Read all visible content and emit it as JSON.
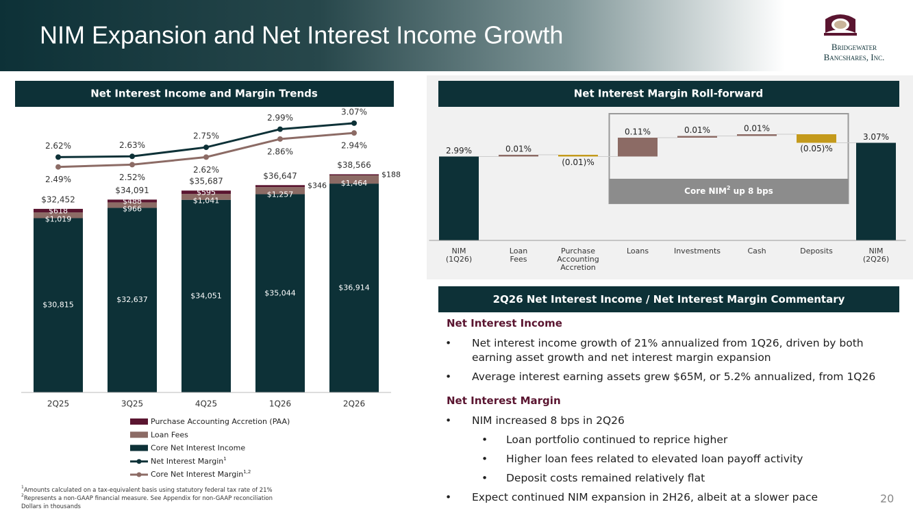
{
  "header": {
    "title": "NIM Expansion and Net Interest Income Growth",
    "logo": [
      "Bridgewater",
      "Bancshares, Inc."
    ]
  },
  "chart_data": [
    {
      "type": "stacked_bar_line",
      "title": "Net Interest Income and Margin Trends",
      "categories": [
        "2Q25",
        "3Q25",
        "4Q25",
        "1Q26",
        "2Q26"
      ],
      "series": [
        {
          "name": "Core Net Interest Income",
          "color": "#0d3137",
          "values": [
            30815,
            32637,
            34051,
            35044,
            36914
          ],
          "value_labels": [
            "$30,815",
            "$32,637",
            "$34,051",
            "$35,044",
            "$36,914"
          ]
        },
        {
          "name": "Loan Fees",
          "color": "#8c6b65",
          "values": [
            1019,
            966,
            1041,
            1257,
            1464
          ],
          "value_labels": [
            "$1,019",
            "$966",
            "$1,041",
            "$1,257",
            "$1,464"
          ]
        },
        {
          "name": "Purchase Accounting Accretion (PAA)",
          "color": "#5a1530",
          "values": [
            618,
            488,
            595,
            346,
            188
          ],
          "value_labels": [
            "$618",
            "$488",
            "$595",
            "$346",
            "$188"
          ]
        },
        {
          "name": "Net Interest Margin",
          "note": "1",
          "type": "line",
          "axis": "y2",
          "color": "#0d3137",
          "values": [
            2.62,
            2.63,
            2.75,
            2.99,
            3.07
          ],
          "value_labels": [
            "2.62%",
            "2.63%",
            "2.75%",
            "2.99%",
            "3.07%"
          ]
        },
        {
          "name": "Core Net Interest Margin",
          "note": "1,2",
          "type": "line",
          "axis": "y2",
          "color": "#8c6b65",
          "values": [
            2.49,
            2.52,
            2.62,
            2.86,
            2.94
          ],
          "value_labels": [
            "2.49%",
            "2.52%",
            "2.62%",
            "2.86%",
            "2.94%"
          ]
        }
      ],
      "totals": [
        32452,
        34091,
        35687,
        36647,
        38566
      ],
      "total_labels": [
        "$32,452",
        "$34,091",
        "$35,687",
        "$36,647",
        "$38,566"
      ],
      "ylim": [
        0,
        50000
      ],
      "y2lim": [
        -0.5,
        3.25
      ],
      "legend_order": [
        2,
        1,
        0,
        3,
        4
      ]
    },
    {
      "type": "waterfall",
      "title": "Net Interest Margin Roll-forward",
      "categories": [
        [
          "NIM",
          "(1Q26)"
        ],
        [
          "Loan",
          "Fees"
        ],
        [
          "Purchase",
          "Accounting",
          "Accretion"
        ],
        [
          "Loans"
        ],
        [
          "Investments"
        ],
        [
          "Cash"
        ],
        [
          "Deposits"
        ],
        [
          "NIM",
          "(2Q26)"
        ]
      ],
      "values": [
        2.99,
        0.01,
        -0.01,
        0.11,
        0.01,
        0.01,
        -0.05,
        3.07
      ],
      "value_labels": [
        "2.99%",
        "0.01%",
        "(0.01)%",
        "0.11%",
        "0.01%",
        "0.01%",
        "(0.05)%",
        "3.07%"
      ],
      "total_indices": [
        0,
        7
      ],
      "colors": {
        "total": "#0d3137",
        "increase": "#8c6b65",
        "decrease": "#c49a1c"
      },
      "ylim": [
        2.5,
        3.25
      ],
      "annotation": {
        "text": "Core NIM",
        "note": "2",
        "text_after": " up 8 bps",
        "range": [
          3,
          6
        ]
      }
    }
  ],
  "commentary": {
    "title": "2Q26 Net Interest Income / Net Interest Margin Commentary",
    "sections": [
      {
        "heading": "Net Interest Income",
        "bullets": [
          {
            "level": 1,
            "text": "Net interest income growth of 21% annualized from 1Q26, driven by both earning asset growth and net interest margin expansion"
          },
          {
            "level": 1,
            "text": "Average interest earning assets grew $65M, or 5.2% annualized, from 1Q26"
          }
        ]
      },
      {
        "heading": "Net Interest Margin",
        "bullets": [
          {
            "level": 1,
            "text": "NIM increased 8 bps in 2Q26"
          },
          {
            "level": 2,
            "text": "Loan portfolio continued to reprice higher"
          },
          {
            "level": 2,
            "text": "Higher loan fees related to elevated loan payoff activity"
          },
          {
            "level": 2,
            "text": "Deposit costs remained relatively flat"
          },
          {
            "level": 1,
            "text": "Expect continued NIM expansion in 2H26, albeit at a slower pace"
          }
        ]
      }
    ]
  },
  "footnotes": [
    {
      "ref": "1",
      "text": "Amounts calculated on a tax-equivalent basis using statutory federal tax rate of 21%"
    },
    {
      "ref": "2",
      "text": "Represents a non-GAAP financial measure. See Appendix for non-GAAP reconciliation"
    },
    {
      "text": "Dollars in thousands"
    }
  ],
  "page_number": 20
}
